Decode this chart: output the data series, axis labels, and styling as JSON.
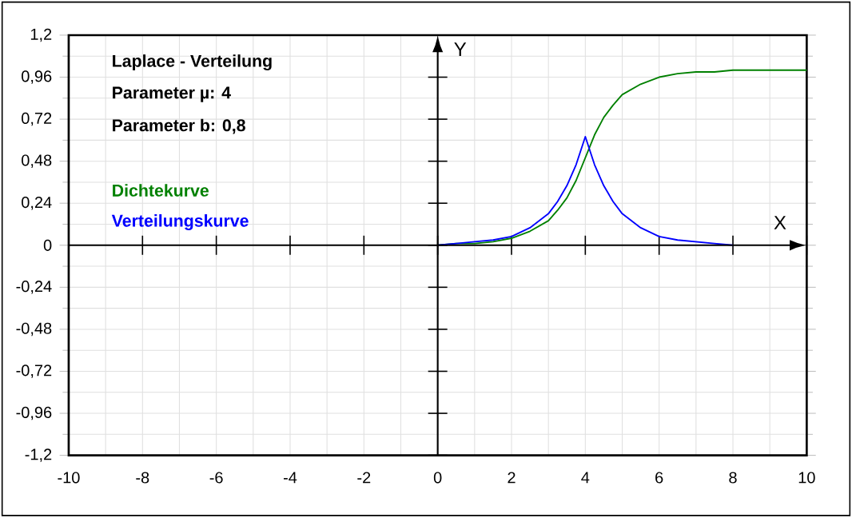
{
  "chart_data": {
    "type": "line",
    "annotations": [
      "Laplace - Verteilung",
      "Parameter  µ: 4",
      "Parameter b: 0,8"
    ],
    "xlabel": "X",
    "ylabel": "Y",
    "x": [
      0,
      0.5,
      1,
      1.5,
      2,
      2.5,
      3,
      3.25,
      3.5,
      3.75,
      4,
      4.25,
      4.5,
      4.75,
      5,
      5.5,
      6,
      6.5,
      7,
      7.5,
      8,
      8.5,
      9,
      9.5,
      10
    ],
    "series": [
      {
        "name": "Dichtekurve",
        "color": "#008000",
        "values": [
          0,
          0.01,
          0.01,
          0.02,
          0.04,
          0.08,
          0.14,
          0.2,
          0.27,
          0.37,
          0.5,
          0.63,
          0.73,
          0.8,
          0.86,
          0.92,
          0.96,
          0.98,
          0.99,
          0.99,
          1.0,
          1.0,
          1.0,
          1.0,
          1.0
        ]
      },
      {
        "name": "Verteilungskurve",
        "color": "#0000ff",
        "values": [
          0,
          0.01,
          0.02,
          0.03,
          0.05,
          0.1,
          0.18,
          0.25,
          0.34,
          0.46,
          0.62,
          0.46,
          0.34,
          0.25,
          0.18,
          0.1,
          0.05,
          0.03,
          0.02,
          0.01,
          0,
          null,
          null,
          null,
          null
        ]
      }
    ],
    "xlim": [
      -10,
      10
    ],
    "ylim": [
      -1.2,
      1.2
    ],
    "xticks": [
      -10,
      -8,
      -6,
      -4,
      -2,
      0,
      2,
      4,
      6,
      8,
      10
    ],
    "yticks": [
      {
        "value": -1.2,
        "label": "-1,2"
      },
      {
        "value": -0.96,
        "label": "-0,96"
      },
      {
        "value": -0.72,
        "label": "-0,72"
      },
      {
        "value": -0.48,
        "label": "-0,48"
      },
      {
        "value": -0.24,
        "label": "-0,24"
      },
      0,
      {
        "value": 0.24,
        "label": "0,24"
      },
      {
        "value": 0.48,
        "label": "0,48"
      },
      {
        "value": 0.72,
        "label": "0,72"
      },
      {
        "value": 0.96,
        "label": "0,96"
      },
      {
        "value": 1.2,
        "label": "1,2"
      }
    ],
    "grid": true,
    "legend": "top left",
    "marker": "none",
    "line_style": "solid"
  }
}
